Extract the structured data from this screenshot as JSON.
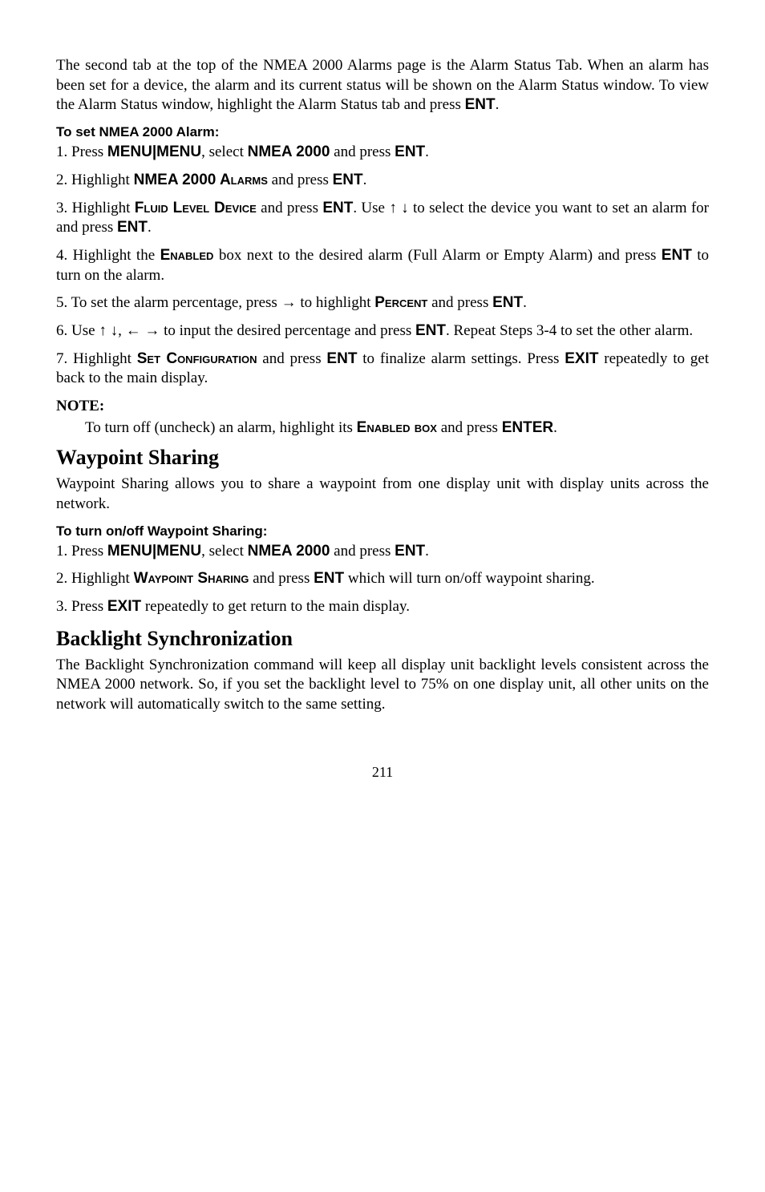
{
  "p_intro": "The second tab at the top of the NMEA 2000 Alarms page is the Alarm Status Tab. When an alarm has been set for a device, the alarm and its current status will be shown on the Alarm Status window.  To view the Alarm Status window, highlight the Alarm Status tab and press ",
  "ent": "ENT",
  "period": ".",
  "h_set_alarm": "To set NMEA 2000 Alarm:",
  "s1a": "1. Press ",
  "menu": "MENU",
  "pipe": "|",
  "s1b": ", select ",
  "nmea2000": "NMEA 2000",
  "s1c": " and press ",
  "s2a": "2. Highlight ",
  "nmea2000alarms": "NMEA 2000 Alarms",
  "s2b": " and press ",
  "s3a": "3. Highlight ",
  "fluidlevel": "Fluid Level Device",
  "s3b": " and press ",
  "s3c": ". Use ",
  "updown": " ↑ ↓ ",
  "s3d": " to select the device you want to set an alarm for and press ",
  "s4a": "4. Highlight the ",
  "enabled": "Enabled",
  "s4b": " box next to the desired alarm (Full Alarm or Empty Alarm) and press ",
  "s4c": " to turn on the alarm.",
  "s5a": "5. To set the alarm percentage, press ",
  "right": "→",
  "s5b": " to highlight ",
  "percent": "Percent",
  "s5c": " and press ",
  "s6a": "6. Use ",
  "s6arrows1": "↑ ↓",
  "comma": ", ",
  "s6arrows2": "← →",
  "s6b": " to input the desired percentage and press ",
  "s6c": ". Repeat Steps 3-4 to set the other alarm.",
  "s7a": "7. Highlight ",
  "setconfig": "Set Configuration",
  "s7b": " and press ",
  "s7c": " to finalize alarm settings. Press ",
  "exit": "EXIT",
  "s7d": " repeatedly to get back to the main display.",
  "note_label": "NOTE:",
  "note_a": "To turn off (uncheck) an alarm, highlight its ",
  "enabledbox": "Enabled box",
  "note_b": " and press ",
  "enter": "ENTER",
  "h_waypoint": "Waypoint Sharing",
  "wp_intro": "Waypoint Sharing allows you to share a waypoint from one display unit with display units across the network.",
  "h_wp_toggle": "To turn on/off Waypoint Sharing:",
  "w1a": "1. Press ",
  "w2a": "2. Highlight ",
  "wpsharing": "Waypoint Sharing",
  "w2b": " and press ",
  "w2c": " which will turn on/off waypoint sharing.",
  "w3a": "3. Press ",
  "w3b": " repeatedly to get return to the main display.",
  "h_backlight": "Backlight Synchronization",
  "bl_body": "The Backlight Synchronization command will keep all display unit backlight levels consistent across the NMEA 2000 network. So, if you set the backlight level to 75% on one display unit, all other units on the network will automatically switch to the same setting.",
  "pagenum": "211"
}
